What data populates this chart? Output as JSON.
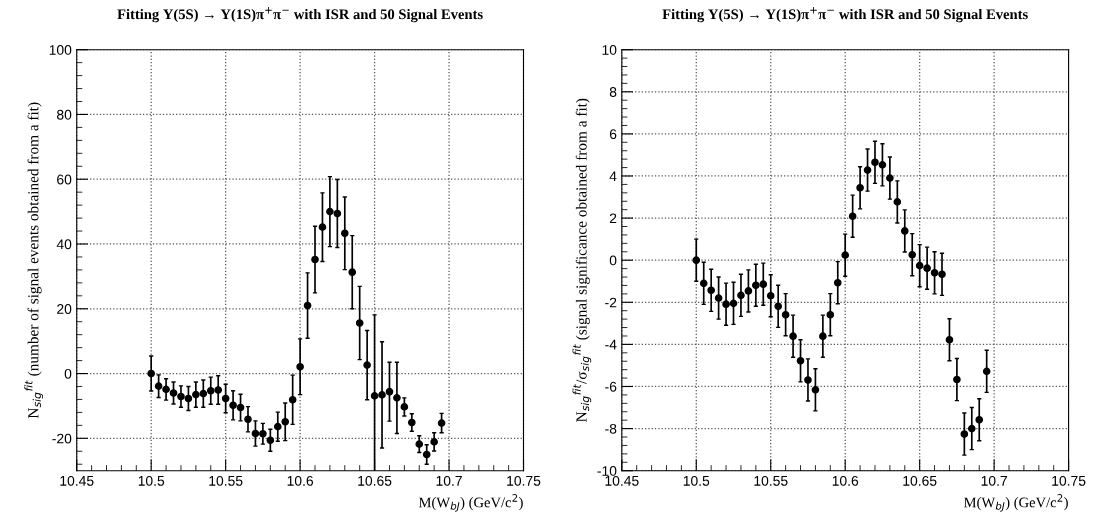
{
  "chart_data": [
    {
      "type": "scatter",
      "title": "Fitting Υ(5S) → Υ(1S)π$^{+}$π$^{−}$ with ISR and 50 Signal Events",
      "xlabel": "M(W$_{bJ}$) (GeV/c$^{2}$)",
      "ylabel": "N$_{sig}$$^{fit}$ (number of signal events obtained from a fit)",
      "x": [
        10.5,
        10.505,
        10.51,
        10.515,
        10.52,
        10.525,
        10.53,
        10.535,
        10.54,
        10.545,
        10.55,
        10.555,
        10.56,
        10.565,
        10.57,
        10.575,
        10.58,
        10.585,
        10.59,
        10.595,
        10.6,
        10.605,
        10.61,
        10.615,
        10.62,
        10.625,
        10.63,
        10.635,
        10.64,
        10.645,
        10.65,
        10.655,
        10.66,
        10.665,
        10.67,
        10.675,
        10.68,
        10.685,
        10.69,
        10.695
      ],
      "series": [
        {
          "color": "#000000",
          "values": [
            0,
            -3.9,
            -4.9,
            -6.0,
            -7.1,
            -7.7,
            -6.5,
            -6.2,
            -5.3,
            -5.1,
            -7.7,
            -9.8,
            -10.5,
            -14.1,
            -18.5,
            -18.6,
            -20.6,
            -16.4,
            -14.9,
            -8.1,
            2.1,
            21.0,
            35.2,
            45.2,
            50.0,
            49.4,
            43.3,
            31.3,
            15.6,
            2.6,
            -6.9,
            -6.6,
            -5.6,
            -7.5,
            -10.3,
            -15.1,
            -21.8,
            -25.0,
            -21.1,
            -15.3
          ],
          "errors": [
            5.4,
            3.5,
            3.3,
            3.4,
            3.3,
            3.7,
            3.9,
            4.2,
            4.2,
            4.4,
            4.4,
            4.5,
            4.1,
            3.9,
            3.9,
            3.2,
            3.4,
            4.5,
            5.8,
            7.6,
            8.6,
            10.1,
            10.3,
            10.6,
            10.8,
            10.5,
            11.2,
            11.3,
            11.3,
            10.7,
            25,
            16.4,
            9.1,
            11,
            2.8,
            2.7,
            2.6,
            3,
            2.8,
            3
          ]
        }
      ],
      "xlim": [
        10.45,
        10.75
      ],
      "xticks": [
        10.45,
        10.5,
        10.55,
        10.6,
        10.65,
        10.7,
        10.75
      ],
      "ylim": [
        -30,
        100
      ],
      "yticks": [
        -20,
        0,
        20,
        40,
        60,
        80,
        100
      ],
      "grid": true,
      "marker": "circle"
    },
    {
      "type": "scatter",
      "title": "Fitting Υ(5S) → Υ(1S)π$^{+}$π$^{−}$ with ISR and 50 Signal Events",
      "xlabel": "M(W$_{bJ}$) (GeV/c$^{2}$)",
      "ylabel": "N$_{sig}$$^{fit}$/σ$_{sig}$$^{fit}$ (signal significance obtained from a fit)",
      "x": [
        10.5,
        10.505,
        10.51,
        10.515,
        10.52,
        10.525,
        10.53,
        10.535,
        10.54,
        10.545,
        10.55,
        10.555,
        10.56,
        10.565,
        10.57,
        10.575,
        10.58,
        10.585,
        10.59,
        10.595,
        10.6,
        10.605,
        10.61,
        10.615,
        10.62,
        10.625,
        10.63,
        10.635,
        10.64,
        10.645,
        10.65,
        10.655,
        10.66,
        10.665,
        10.67,
        10.675,
        10.68,
        10.685,
        10.69,
        10.695
      ],
      "series": [
        {
          "color": "#000000",
          "values": [
            0.0,
            -1.1,
            -1.43,
            -1.8,
            -2.09,
            -2.05,
            -1.67,
            -1.46,
            -1.19,
            -1.14,
            -1.69,
            -2.19,
            -2.59,
            -3.61,
            -4.78,
            -5.69,
            -6.16,
            -3.61,
            -2.59,
            -1.07,
            0.24,
            2.09,
            3.44,
            4.28,
            4.65,
            4.53,
            3.9,
            2.77,
            1.39,
            0.26,
            -0.26,
            -0.38,
            -0.6,
            -0.67,
            -3.78,
            -5.67,
            -8.26,
            -8.0,
            -7.58,
            -5.28
          ],
          "errors": [
            1,
            1,
            1,
            1,
            1,
            1,
            1,
            1,
            1,
            1,
            1,
            1,
            1,
            1,
            1,
            1,
            1,
            1,
            1,
            1,
            1,
            1,
            1,
            1,
            1,
            1,
            1,
            1,
            1,
            1,
            1,
            1,
            1,
            1,
            1,
            1,
            1,
            1,
            1,
            1
          ]
        }
      ],
      "xlim": [
        10.45,
        10.75
      ],
      "xticks": [
        10.45,
        10.5,
        10.55,
        10.6,
        10.65,
        10.7,
        10.75
      ],
      "ylim": [
        -10,
        10
      ],
      "yticks": [
        -10,
        -8,
        -6,
        -4,
        -2,
        0,
        2,
        4,
        6,
        8,
        10
      ],
      "grid": true,
      "marker": "circle"
    }
  ]
}
